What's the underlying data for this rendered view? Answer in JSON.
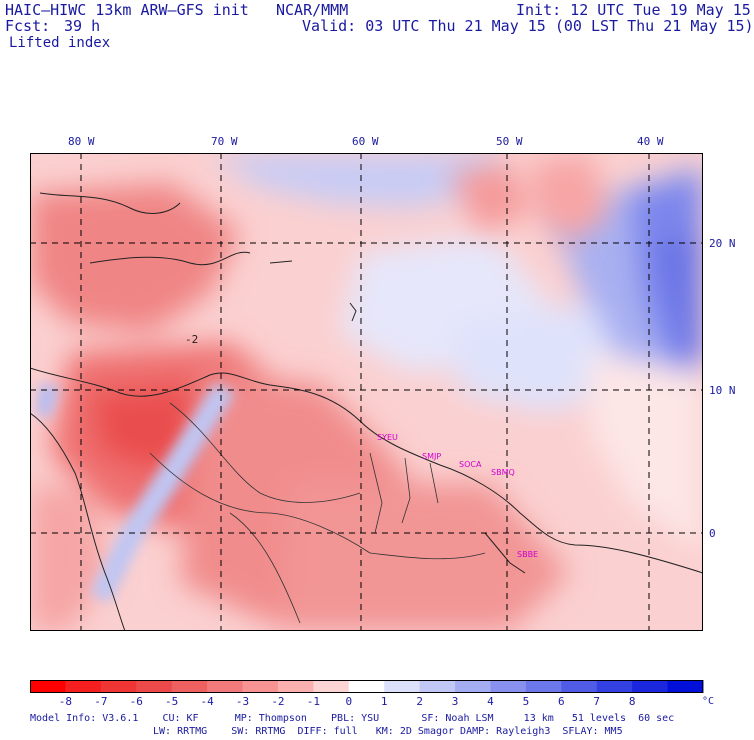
{
  "header": {
    "model": "HAIC–HIWC 13km ARW–GFS init",
    "org": "NCAR/MMM",
    "init": "Init: 12 UTC Tue 19 May 15",
    "fcst_label": "Fcst:",
    "fcst_value": "39 h",
    "valid": "Valid: 03 UTC Thu 21 May 15 (00 LST Thu 21 May 15)",
    "field": "Lifted index"
  },
  "map": {
    "lon_labels": [
      "80 W",
      "70 W",
      "60 W",
      "50 W",
      "40 W"
    ],
    "lat_labels": [
      "20 N",
      "10 N",
      "0"
    ],
    "contour_label": "-2",
    "stations": [
      "SYEU",
      "SMJP",
      "SOCA",
      "SBMQ",
      "SBBE"
    ],
    "land_color": "#f08080",
    "ocean_stable_color": "#6b77e8"
  },
  "colorbar": {
    "labels": [
      "-8",
      "-7",
      "-6",
      "-5",
      "-4",
      "-3",
      "-2",
      "-1",
      "0",
      "1",
      "2",
      "3",
      "4",
      "5",
      "6",
      "7",
      "8"
    ],
    "unit": "°C",
    "colors": [
      "#ff0000",
      "#f51f1f",
      "#f03535",
      "#ec4a4a",
      "#ef6060",
      "#f37a7a",
      "#f79393",
      "#fbb0b0",
      "#fdd4d4",
      "#ffffff",
      "#dde0fb",
      "#c2c8f6",
      "#a4acf2",
      "#8891ee",
      "#6c77ea",
      "#505ce6",
      "#3441e2",
      "#1a27dd",
      "#0010d8"
    ]
  },
  "footer": {
    "line1": "Model Info: V3.6.1    CU: KF      MP: Thompson    PBL: YSU       SF: Noah LSM     13 km   51 levels  60 sec",
    "line2": "LW: RRTMG    SW: RRTMG  DIFF: full   KM: 2D Smagor DAMP: Rayleigh3  SFLAY: MM5"
  }
}
